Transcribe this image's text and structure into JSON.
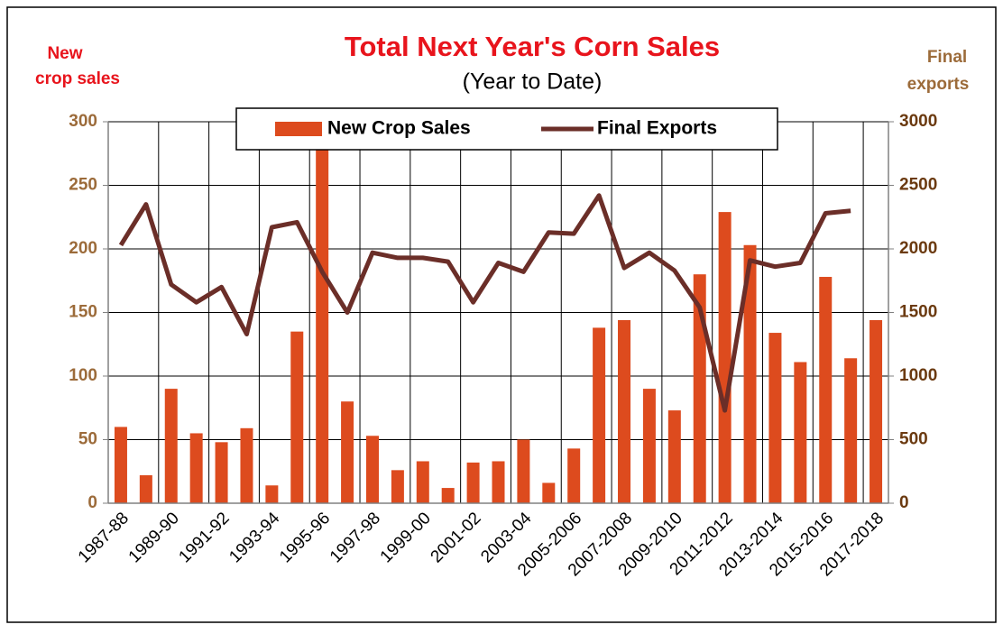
{
  "chart_data": {
    "type": "bar_line",
    "title": "Total Next Year's Corn Sales",
    "subtitle": "(Year to Date)",
    "y_label": [
      "New",
      "crop sales"
    ],
    "y2_label": [
      "Final",
      "exports"
    ],
    "categories": [
      "1987-88",
      null,
      "1989-90",
      null,
      "1991-92",
      null,
      "1993-94",
      null,
      "1995-96",
      null,
      "1997-98",
      null,
      "1999-00",
      null,
      "2001-02",
      null,
      "2003-04",
      null,
      "2005-2006",
      null,
      "2007-2008",
      null,
      "2009-2010",
      null,
      "2011-2012",
      null,
      "2013-2014",
      null,
      "2015-2016",
      null,
      "2017-2018"
    ],
    "series": [
      {
        "name": "New Crop Sales",
        "type": "bar",
        "color": "#dd4b1e",
        "values": [
          60,
          22,
          90,
          55,
          48,
          59,
          14,
          135,
          310,
          80,
          53,
          26,
          33,
          12,
          32,
          33,
          50,
          16,
          43,
          138,
          144,
          90,
          73,
          180,
          229,
          203,
          134,
          111,
          178,
          114,
          144
        ]
      },
      {
        "name": "Final Exports",
        "type": "line",
        "axis": "y2",
        "color": "#6b2e28",
        "values": [
          2030,
          2350,
          1720,
          1580,
          1700,
          1330,
          2170,
          2210,
          1820,
          1500,
          1970,
          1930,
          1930,
          1900,
          1580,
          1890,
          1820,
          2130,
          2120,
          2420,
          1850,
          1970,
          1830,
          1540,
          730,
          1910,
          1860,
          1890,
          2280,
          2300,
          null
        ]
      }
    ],
    "ylim": [
      0,
      300
    ],
    "yticks": [
      0,
      50,
      100,
      150,
      200,
      250,
      300
    ],
    "y2lim": [
      0,
      3000
    ],
    "y2ticks": [
      0,
      500,
      1000,
      1500,
      2000,
      2500,
      3000
    ],
    "grid": true,
    "legend": "top"
  }
}
